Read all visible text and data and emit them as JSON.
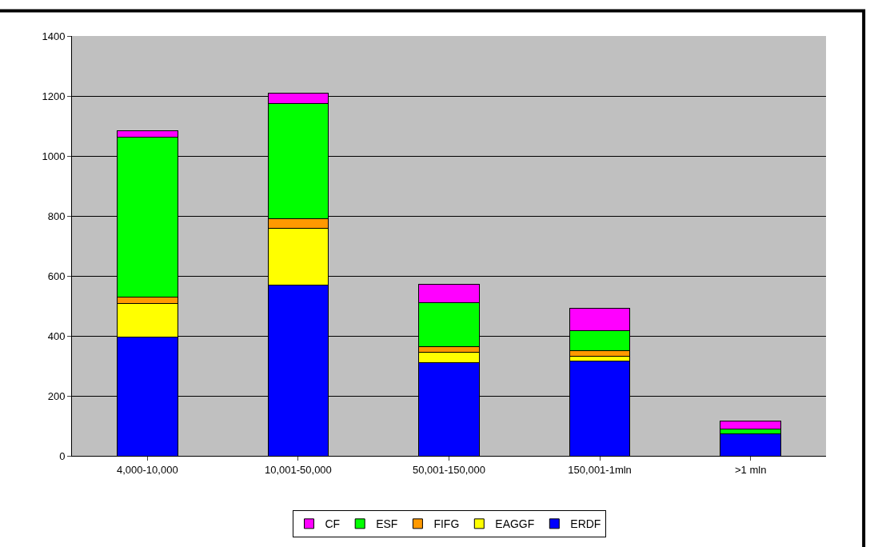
{
  "chart_data": {
    "type": "bar",
    "stacked": true,
    "categories": [
      "4,000-10,000",
      "10,001-50,000",
      "50,001-150,000",
      "150,001-1mln",
      ">1 mln"
    ],
    "series": [
      {
        "name": "ERDF",
        "color": "#0000ff",
        "values": [
          395,
          570,
          310,
          317,
          73
        ]
      },
      {
        "name": "EAGGF",
        "color": "#ffff00",
        "values": [
          114,
          190,
          36,
          16,
          0
        ]
      },
      {
        "name": "FIFG",
        "color": "#ff9900",
        "values": [
          21,
          30,
          17,
          19,
          0
        ]
      },
      {
        "name": "ESF",
        "color": "#00ff00",
        "values": [
          533,
          385,
          148,
          65,
          17
        ]
      },
      {
        "name": "CF",
        "color": "#ff00ff",
        "values": [
          20,
          35,
          60,
          74,
          26
        ]
      }
    ],
    "ylim": [
      0,
      1400
    ],
    "yticks": [
      0,
      200,
      400,
      600,
      800,
      1000,
      1200,
      1400
    ],
    "grid": "y",
    "legend": "bottom"
  }
}
